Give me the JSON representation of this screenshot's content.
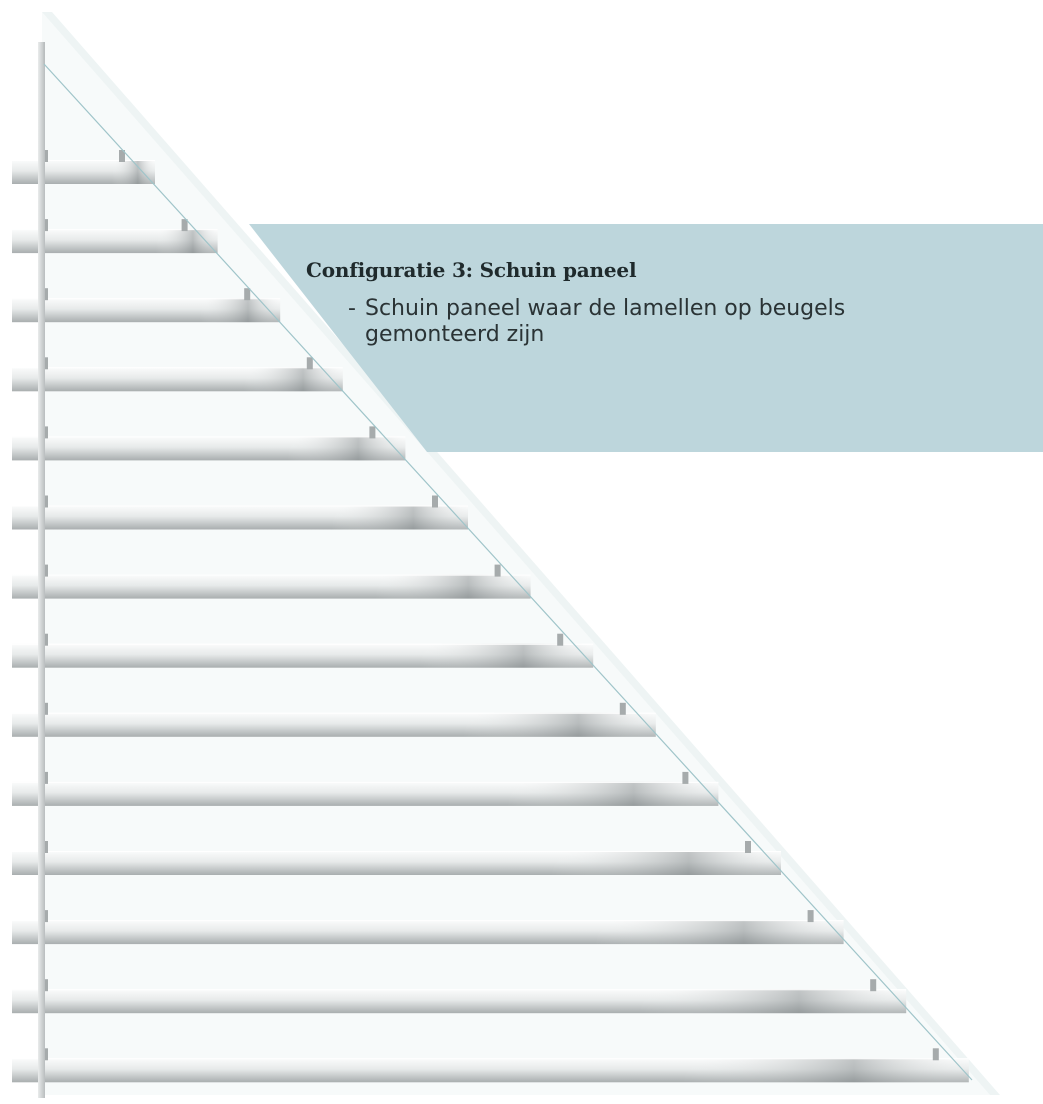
{
  "panel": {
    "title": "Configuratie 3: Schuin paneel",
    "bullet_marker": "-",
    "bullet_text": "Schuin paneel waar de lamellen op beugels gemonteerd zijn"
  },
  "colors": {
    "info_box": "#bdd6dc",
    "slat_light": "#f4f6f6",
    "slat_mid": "#d3d7d8",
    "slat_dark": "#9ea4a6",
    "frame": "#c7cbcc",
    "glass_edge": "#9fc4c9"
  },
  "illustration": {
    "slat_count": 14
  }
}
